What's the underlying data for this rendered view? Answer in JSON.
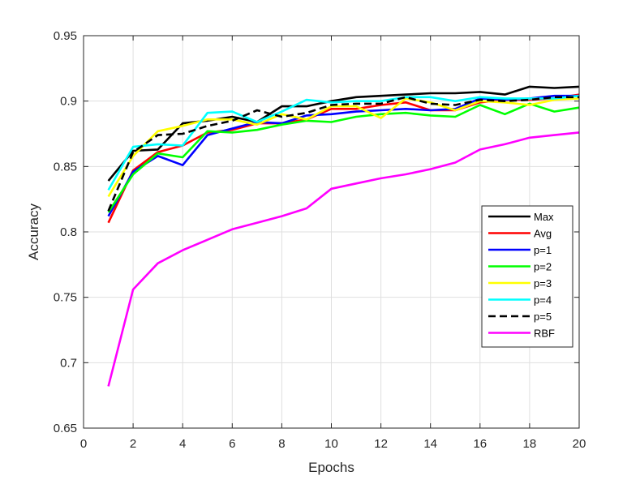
{
  "chart_data": {
    "type": "line",
    "xlabel": "Epochs",
    "ylabel": "Accuracy",
    "xlim": [
      0,
      20
    ],
    "ylim": [
      0.65,
      0.95
    ],
    "xticks": [
      "0",
      "2",
      "4",
      "6",
      "8",
      "10",
      "12",
      "14",
      "16",
      "18",
      "20"
    ],
    "yticks": [
      "0.65",
      "0.7",
      "0.75",
      "0.8",
      "0.85",
      "0.9",
      "0.95"
    ],
    "grid": true,
    "legend_position": "right",
    "x": [
      1,
      2,
      3,
      4,
      5,
      6,
      7,
      8,
      9,
      10,
      11,
      12,
      13,
      14,
      15,
      16,
      17,
      18,
      19,
      20
    ],
    "series": [
      {
        "name": "Max",
        "color": "#000000",
        "dash": "solid",
        "values": [
          0.839,
          0.862,
          0.863,
          0.883,
          0.885,
          0.888,
          0.884,
          0.896,
          0.896,
          0.9,
          0.903,
          0.904,
          0.905,
          0.906,
          0.906,
          0.907,
          0.905,
          0.911,
          0.91,
          0.911
        ]
      },
      {
        "name": "Avg",
        "color": "#ff0000",
        "dash": "solid",
        "values": [
          0.807,
          0.847,
          0.861,
          0.866,
          0.876,
          0.878,
          0.883,
          0.883,
          0.886,
          0.894,
          0.894,
          0.897,
          0.899,
          0.893,
          0.893,
          0.899,
          0.901,
          0.901,
          0.902,
          0.905
        ]
      },
      {
        "name": "p=1",
        "color": "#0000ff",
        "dash": "solid",
        "values": [
          0.812,
          0.846,
          0.858,
          0.851,
          0.874,
          0.879,
          0.884,
          0.883,
          0.889,
          0.89,
          0.892,
          0.893,
          0.894,
          0.893,
          0.894,
          0.902,
          0.901,
          0.902,
          0.904,
          0.904
        ]
      },
      {
        "name": "p=2",
        "color": "#00ff00",
        "dash": "solid",
        "values": [
          0.815,
          0.844,
          0.86,
          0.857,
          0.877,
          0.876,
          0.878,
          0.882,
          0.885,
          0.884,
          0.888,
          0.89,
          0.891,
          0.889,
          0.888,
          0.897,
          0.89,
          0.898,
          0.892,
          0.895
        ]
      },
      {
        "name": "p=3",
        "color": "#ffff00",
        "dash": "solid",
        "values": [
          0.827,
          0.858,
          0.877,
          0.881,
          0.886,
          0.886,
          0.882,
          0.89,
          0.886,
          0.896,
          0.896,
          0.887,
          0.902,
          0.899,
          0.893,
          0.9,
          0.899,
          0.897,
          0.901,
          0.902
        ]
      },
      {
        "name": "p=4",
        "color": "#00ffff",
        "dash": "solid",
        "values": [
          0.832,
          0.865,
          0.867,
          0.866,
          0.891,
          0.892,
          0.884,
          0.892,
          0.901,
          0.899,
          0.9,
          0.9,
          0.903,
          0.903,
          0.9,
          0.903,
          0.902,
          0.902,
          0.902,
          0.904
        ]
      },
      {
        "name": "p=5",
        "color": "#000000",
        "dash": "dashed",
        "values": [
          0.816,
          0.861,
          0.874,
          0.875,
          0.881,
          0.885,
          0.893,
          0.888,
          0.891,
          0.897,
          0.898,
          0.898,
          0.903,
          0.898,
          0.897,
          0.901,
          0.9,
          0.901,
          0.903,
          0.903
        ]
      },
      {
        "name": "RBF",
        "color": "#ff00ff",
        "dash": "solid",
        "values": [
          0.682,
          0.756,
          0.776,
          0.786,
          0.794,
          0.802,
          0.807,
          0.812,
          0.818,
          0.833,
          0.837,
          0.841,
          0.844,
          0.848,
          0.853,
          0.863,
          0.867,
          0.872,
          0.874,
          0.876
        ]
      }
    ]
  }
}
